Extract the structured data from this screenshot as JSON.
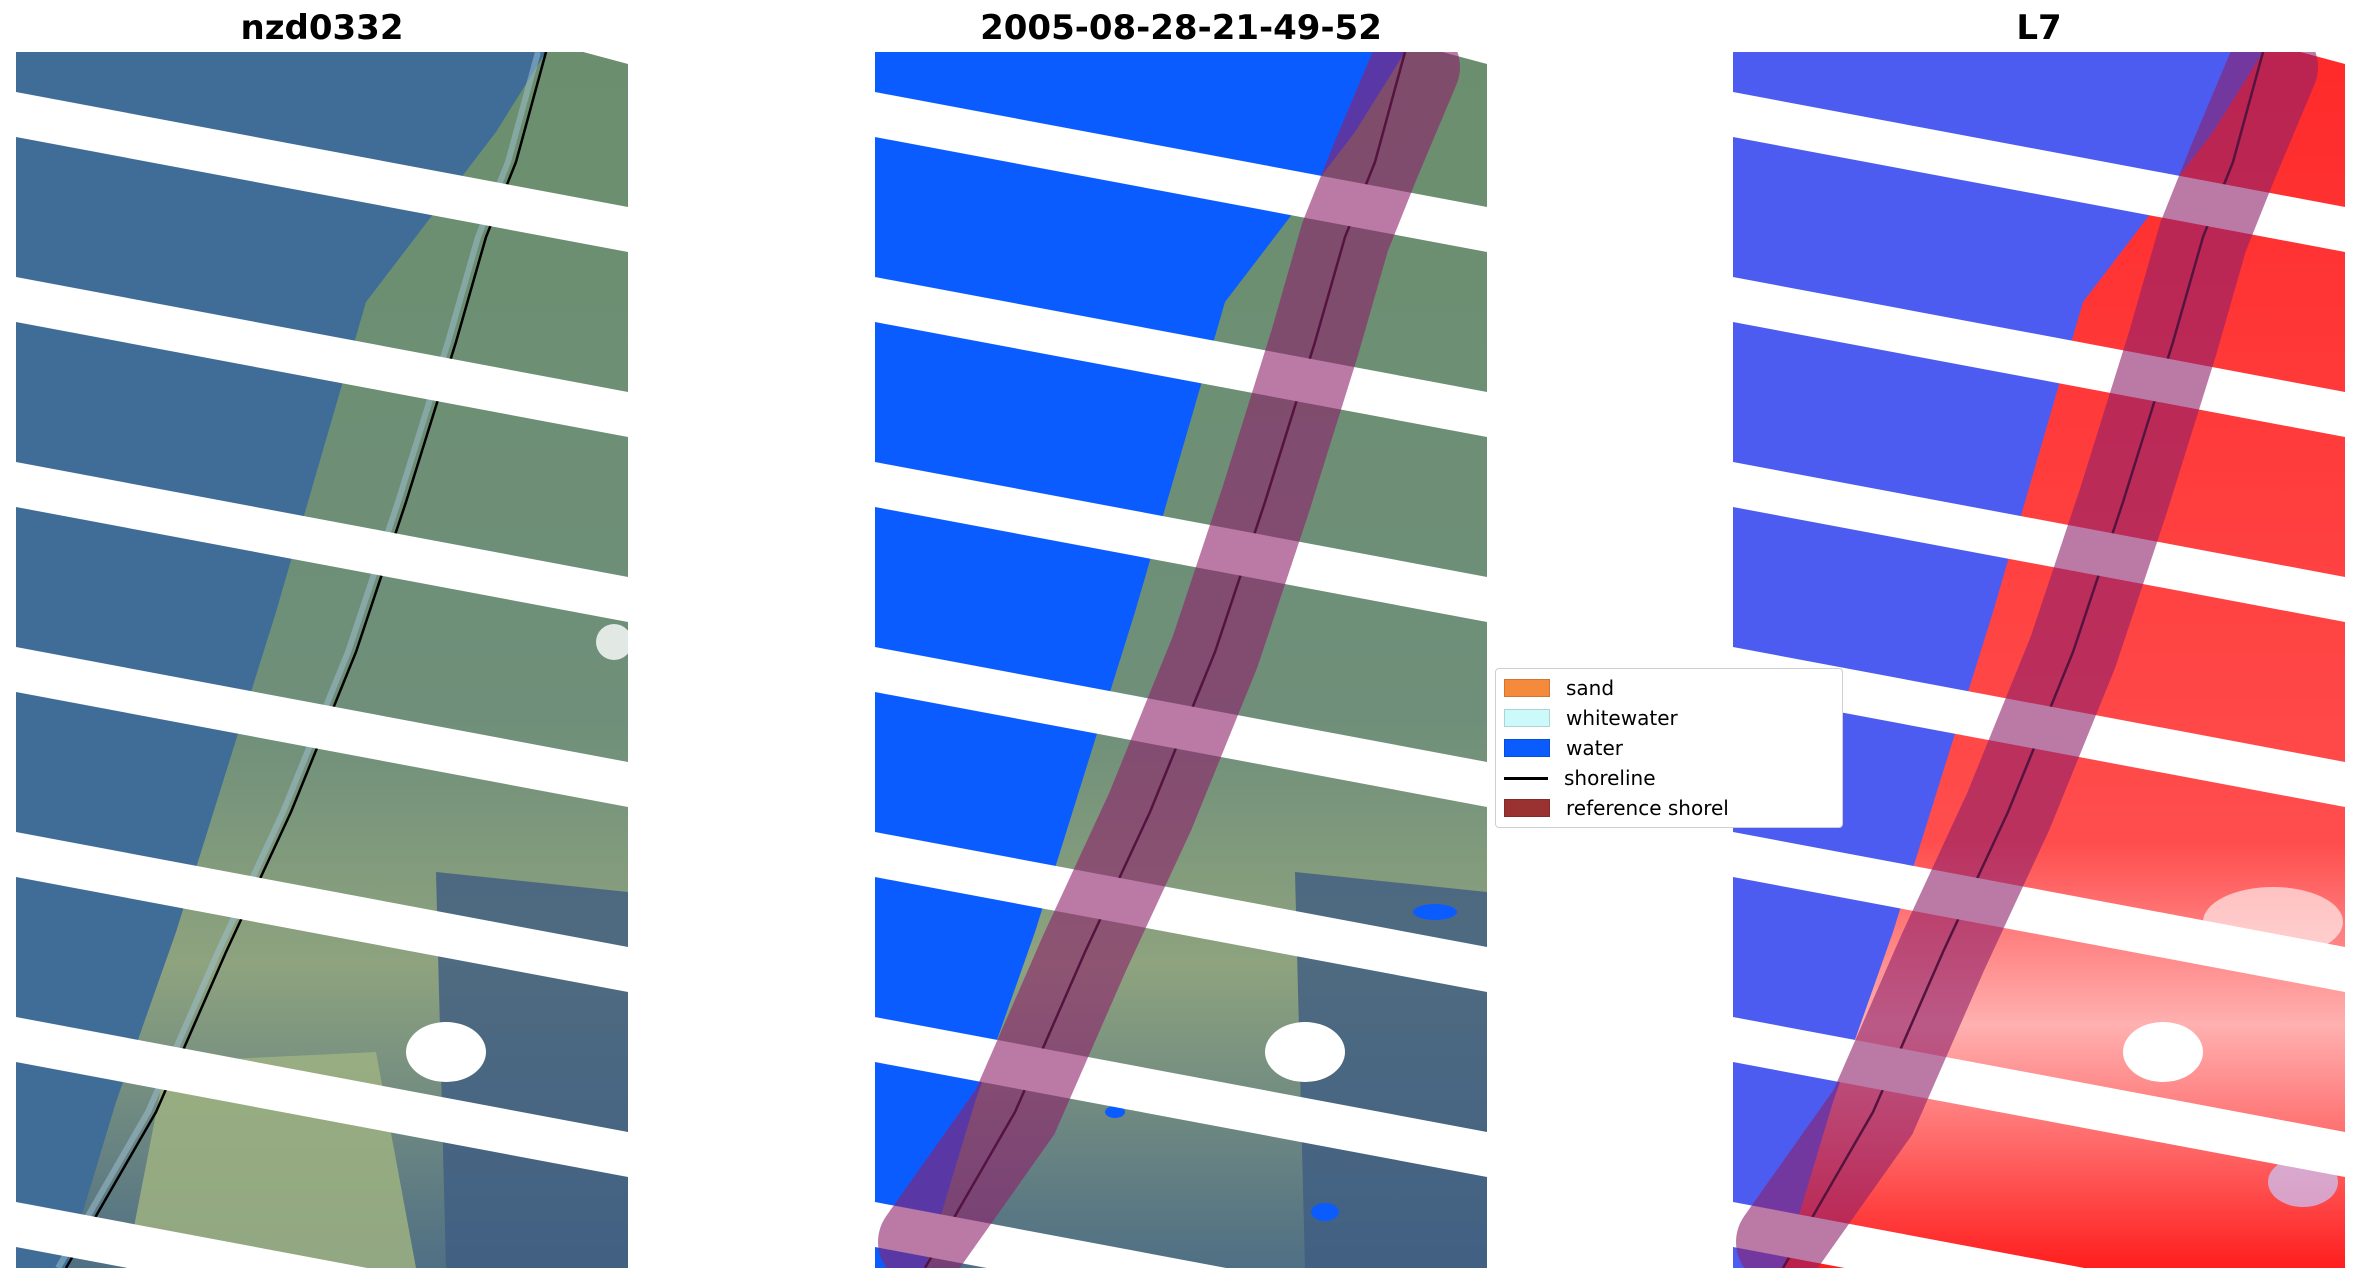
{
  "panels": {
    "left": {
      "title": "nzd0332"
    },
    "middle": {
      "title": "2005-08-28-21-49-52"
    },
    "right": {
      "title": "L7"
    }
  },
  "legend": {
    "items": [
      {
        "label": "sand",
        "color": "#f58a3c"
      },
      {
        "label": "whitewater",
        "color": "#ccf9f9"
      },
      {
        "label": "water",
        "color": "#0a5cff"
      },
      {
        "label": "shoreline",
        "color": "#000000"
      },
      {
        "label": "reference shorel",
        "color": "#9a3232"
      }
    ]
  },
  "colors": {
    "ocean": "#3e6c96",
    "land": "#5f8a6a",
    "water_class": "#0a5cff",
    "buffer": "#8e1f6a",
    "index_water": "#4455ee",
    "index_land": "#ff3333"
  }
}
